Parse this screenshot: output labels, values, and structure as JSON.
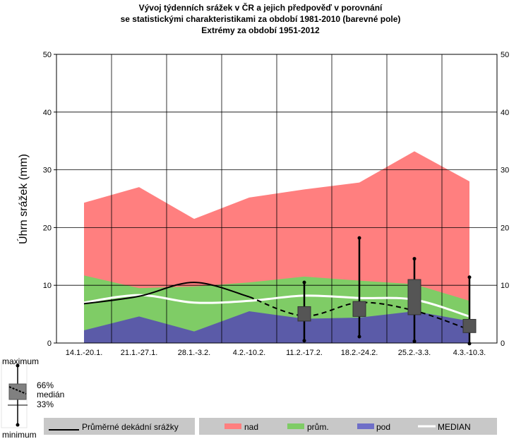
{
  "title_lines": [
    "Vývoj týdenních srážek v ČR a jejich předpověď v porovnání",
    "se statistickými charakteristikami za období 1981-2010 (barevné pole)",
    "Extrémy za období 1951-2012"
  ],
  "colors": {
    "nad": "#ff7f7f",
    "prum": "#7fcc66",
    "pod": "#5b5ba8",
    "median": "#ffffff",
    "box": "#555555",
    "avg_line": "#000000",
    "legend_bar": "#c8c8c8"
  },
  "chart_data": {
    "type": "area",
    "title": "Vývoj týdenních srážek v ČR a jejich předpověď v porovnání se statistickými charakteristikami za období 1981-2010 (barevné pole) Extrémy za období 1951-2012",
    "ylabel": "Úhrn srážek (mm)",
    "ylim": [
      0,
      50
    ],
    "yticks": [
      0,
      10,
      20,
      30,
      40,
      50
    ],
    "categories": [
      "14.1.-20.1.",
      "21.1.-27.1.",
      "28.1.-3.2.",
      "4.2.-10.2.",
      "11.2.-17.2.",
      "18.2.-24.2.",
      "25.2.-3.3.",
      "4.3.-10.3."
    ],
    "series": [
      {
        "name": "nad",
        "values": [
          24.3,
          27.0,
          21.5,
          25.2,
          26.6,
          27.8,
          33.2,
          28.0
        ]
      },
      {
        "name": "prům.",
        "values": [
          11.7,
          9.5,
          9.8,
          10.5,
          11.5,
          10.8,
          10.2,
          7.3
        ]
      },
      {
        "name": "pod",
        "values": [
          2.2,
          4.6,
          2.0,
          5.5,
          4.2,
          4.4,
          5.5,
          3.8
        ]
      },
      {
        "name": "MEDIAN",
        "values": [
          7.0,
          8.3,
          7.0,
          7.3,
          8.2,
          7.8,
          7.5,
          4.6
        ]
      }
    ],
    "observed": {
      "name": "Průměrné dekádní srážky",
      "x": [
        0,
        1,
        2,
        3
      ],
      "values": [
        6.8,
        8.1,
        10.5,
        8.0
      ]
    },
    "forecast_median": {
      "x": [
        3,
        4,
        5,
        6,
        7
      ],
      "values": [
        8.0,
        4.7,
        7.0,
        5.6,
        2.3
      ]
    },
    "boxes": [
      {
        "x": 4,
        "min": 0.4,
        "q33": 3.8,
        "q66": 6.3,
        "max": 10.5
      },
      {
        "x": 5,
        "min": 1.1,
        "q33": 4.6,
        "q66": 7.2,
        "max": 18.2
      },
      {
        "x": 6,
        "min": 0.3,
        "q33": 4.9,
        "q66": 11.0,
        "max": 14.6
      },
      {
        "x": 7,
        "min": -0.1,
        "q33": 1.8,
        "q66": 4.1,
        "max": 11.4
      }
    ]
  },
  "box_legend": {
    "maximum": "maximum",
    "p66": "66%",
    "median": "medián",
    "p33": "33%",
    "minimum": "minimum"
  },
  "legend": {
    "avg": "Průměrné dekádní srážky",
    "nad": "nad",
    "prum": "prům.",
    "pod": "pod",
    "median": "MEDIAN"
  }
}
